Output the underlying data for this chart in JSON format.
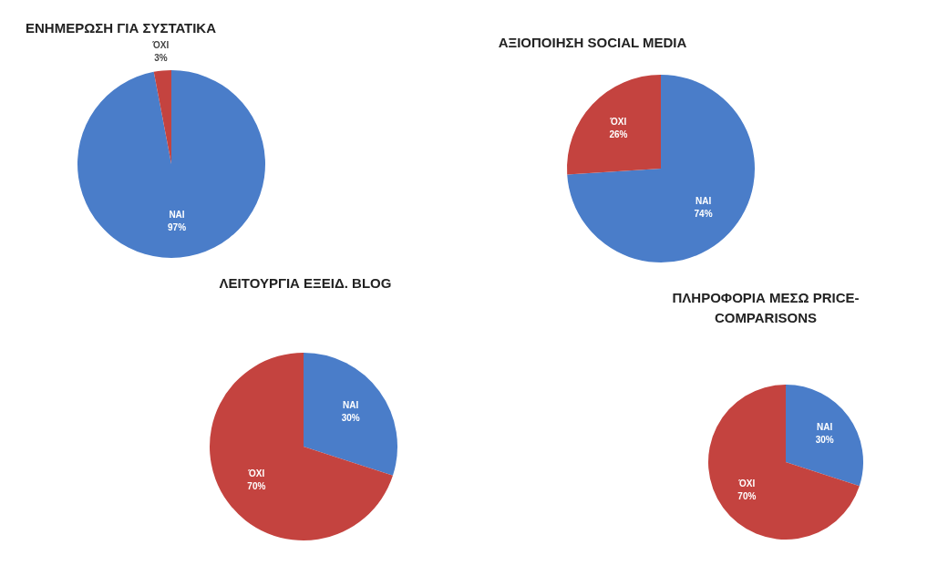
{
  "chart_data": [
    {
      "type": "pie",
      "title": "ΕΝΗΜΕΡΩΣΗ ΓΙΑ ΣΥΣΤΑΤΙΚΑ",
      "categories": [
        "ΝΑΙ",
        "ΌΧΙ"
      ],
      "values": [
        97,
        3
      ],
      "colors": [
        "#4a7dc9",
        "#c4433f"
      ],
      "value_labels": [
        "97%",
        "3%"
      ],
      "legend": false
    },
    {
      "type": "pie",
      "title": "ΑΞΙΟΠΟΙΗΣΗ SOCIAL MEDIA",
      "categories": [
        "ΝΑΙ",
        "ΌΧΙ"
      ],
      "values": [
        74,
        26
      ],
      "colors": [
        "#4a7dc9",
        "#c4433f"
      ],
      "value_labels": [
        "74%",
        "26%"
      ],
      "legend": false
    },
    {
      "type": "pie",
      "title": "ΛΕΙΤΟΥΡΓΙΑ ΕΞΕΙΔ. BLOG",
      "categories": [
        "ΝΑΙ",
        "ΌΧΙ"
      ],
      "values": [
        30,
        70
      ],
      "colors": [
        "#4a7dc9",
        "#c4433f"
      ],
      "value_labels": [
        "30%",
        "70%"
      ],
      "legend": false
    },
    {
      "type": "pie",
      "title": "ΠΛΗΡΟΦΟΡΙΑ ΜΕΣΩ PRICE-COMPARISONS",
      "categories": [
        "ΝΑΙ",
        "ΌΧΙ"
      ],
      "values": [
        30,
        70
      ],
      "colors": [
        "#4a7dc9",
        "#c4433f"
      ],
      "value_labels": [
        "30%",
        "70%"
      ],
      "legend": false
    }
  ]
}
